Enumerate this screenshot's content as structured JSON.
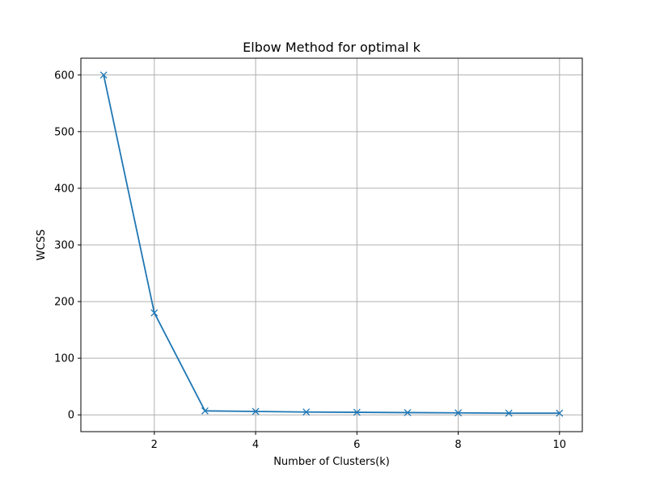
{
  "chart_data": {
    "type": "line",
    "title": "Elbow Method for optimal k",
    "xlabel": "Number of Clusters(k)",
    "ylabel": "WCSS",
    "x": [
      1,
      2,
      3,
      4,
      5,
      6,
      7,
      8,
      9,
      10
    ],
    "series": [
      {
        "values": [
          600,
          180,
          7,
          6,
          5,
          4.5,
          4,
          3.5,
          3,
          3
        ],
        "color": "#1f77b4",
        "marker": "x"
      }
    ],
    "xlim": [
      0.55,
      10.45
    ],
    "ylim": [
      -29.65,
      629.65
    ],
    "xticks": [
      2,
      4,
      6,
      8,
      10
    ],
    "yticks": [
      0,
      100,
      200,
      300,
      400,
      500,
      600
    ],
    "grid": true
  }
}
